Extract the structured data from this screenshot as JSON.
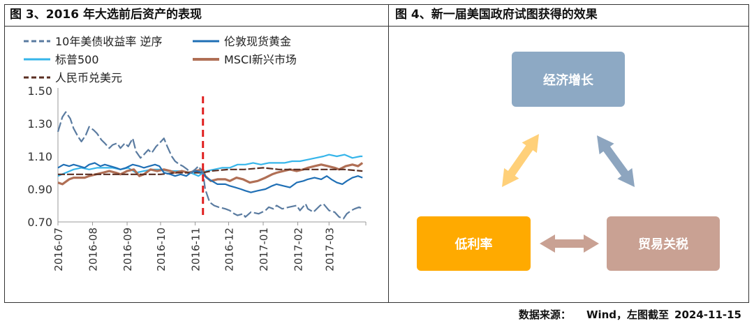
{
  "left_panel": {
    "title": "图 3、2016 年大选前后资产的表现"
  },
  "right_panel": {
    "title": "图 4、新一届美国政府试图获得的效果",
    "nodes": [
      {
        "label": "经济增长",
        "color": "#8DA9C4"
      },
      {
        "label": "低利率",
        "color": "#FFAA00"
      },
      {
        "label": "贸易关税",
        "color": "#C9A193"
      }
    ],
    "arrow_colors": {
      "left": "#FFD079",
      "right": "#8DA5BF",
      "bottom": "#C9A193"
    }
  },
  "footer": {
    "source_label": "数据来源：",
    "source": "Wind，左图截至",
    "date": "2024-11-15"
  },
  "chart_data": {
    "type": "line",
    "y_ticks": [
      "1.50",
      "1.30",
      "1.10",
      "0.90",
      "0.70"
    ],
    "ylim": [
      0.7,
      1.5
    ],
    "x_ticks": [
      "2016-07",
      "2016-08",
      "2016-09",
      "2016-10",
      "2016-11",
      "2016-12",
      "2017-01",
      "2017-02",
      "2017-03"
    ],
    "event_marker": {
      "date": "2016-11-08",
      "color": "#E02020"
    },
    "series": [
      {
        "name": "10年美债收益率 逆序",
        "color": "#5A7BA0",
        "dashed": true,
        "points": [
          [
            "2016-07-01",
            1.25
          ],
          [
            "2016-07-05",
            1.34
          ],
          [
            "2016-07-08",
            1.37
          ],
          [
            "2016-07-12",
            1.33
          ],
          [
            "2016-07-15",
            1.27
          ],
          [
            "2016-07-19",
            1.22
          ],
          [
            "2016-07-22",
            1.19
          ],
          [
            "2016-07-26",
            1.23
          ],
          [
            "2016-07-29",
            1.28
          ],
          [
            "2016-08-02",
            1.26
          ],
          [
            "2016-08-05",
            1.24
          ],
          [
            "2016-08-09",
            1.2
          ],
          [
            "2016-08-12",
            1.18
          ],
          [
            "2016-08-16",
            1.15
          ],
          [
            "2016-08-19",
            1.17
          ],
          [
            "2016-08-23",
            1.18
          ],
          [
            "2016-08-26",
            1.15
          ],
          [
            "2016-08-30",
            1.18
          ],
          [
            "2016-09-02",
            1.16
          ],
          [
            "2016-09-06",
            1.21
          ],
          [
            "2016-09-09",
            1.13
          ],
          [
            "2016-09-13",
            1.09
          ],
          [
            "2016-09-16",
            1.11
          ],
          [
            "2016-09-20",
            1.14
          ],
          [
            "2016-09-23",
            1.12
          ],
          [
            "2016-09-27",
            1.16
          ],
          [
            "2016-09-30",
            1.18
          ],
          [
            "2016-10-04",
            1.21
          ],
          [
            "2016-10-07",
            1.16
          ],
          [
            "2016-10-11",
            1.1
          ],
          [
            "2016-10-14",
            1.07
          ],
          [
            "2016-10-18",
            1.05
          ],
          [
            "2016-10-21",
            1.04
          ],
          [
            "2016-10-25",
            1.02
          ],
          [
            "2016-10-28",
            1.0
          ],
          [
            "2016-11-01",
            1.02
          ],
          [
            "2016-11-04",
            1.04
          ],
          [
            "2016-11-08",
            1.0
          ],
          [
            "2016-11-10",
            0.9
          ],
          [
            "2016-11-14",
            0.82
          ],
          [
            "2016-11-18",
            0.8
          ],
          [
            "2016-11-22",
            0.79
          ],
          [
            "2016-11-28",
            0.78
          ],
          [
            "2016-12-02",
            0.77
          ],
          [
            "2016-12-06",
            0.75
          ],
          [
            "2016-12-09",
            0.74
          ],
          [
            "2016-12-14",
            0.75
          ],
          [
            "2016-12-16",
            0.73
          ],
          [
            "2016-12-21",
            0.76
          ],
          [
            "2016-12-28",
            0.75
          ],
          [
            "2017-01-03",
            0.77
          ],
          [
            "2017-01-06",
            0.79
          ],
          [
            "2017-01-10",
            0.78
          ],
          [
            "2017-01-13",
            0.8
          ],
          [
            "2017-01-18",
            0.78
          ],
          [
            "2017-01-24",
            0.79
          ],
          [
            "2017-01-31",
            0.8
          ],
          [
            "2017-02-03",
            0.77
          ],
          [
            "2017-02-08",
            0.81
          ],
          [
            "2017-02-10",
            0.78
          ],
          [
            "2017-02-15",
            0.76
          ],
          [
            "2017-02-21",
            0.8
          ],
          [
            "2017-02-24",
            0.81
          ],
          [
            "2017-03-01",
            0.77
          ],
          [
            "2017-03-06",
            0.76
          ],
          [
            "2017-03-10",
            0.73
          ],
          [
            "2017-03-14",
            0.72
          ],
          [
            "2017-03-17",
            0.75
          ],
          [
            "2017-03-21",
            0.77
          ],
          [
            "2017-03-24",
            0.78
          ],
          [
            "2017-03-28",
            0.79
          ],
          [
            "2017-03-31",
            0.78
          ]
        ]
      },
      {
        "name": "伦敦现货黄金",
        "color": "#1F6FB5",
        "dashed": false,
        "points": [
          [
            "2016-07-01",
            1.03
          ],
          [
            "2016-07-06",
            1.05
          ],
          [
            "2016-07-11",
            1.04
          ],
          [
            "2016-07-15",
            1.05
          ],
          [
            "2016-07-20",
            1.04
          ],
          [
            "2016-07-25",
            1.03
          ],
          [
            "2016-07-29",
            1.05
          ],
          [
            "2016-08-03",
            1.06
          ],
          [
            "2016-08-08",
            1.04
          ],
          [
            "2016-08-12",
            1.05
          ],
          [
            "2016-08-17",
            1.04
          ],
          [
            "2016-08-22",
            1.03
          ],
          [
            "2016-08-26",
            1.02
          ],
          [
            "2016-08-31",
            1.03
          ],
          [
            "2016-09-06",
            1.05
          ],
          [
            "2016-09-12",
            1.04
          ],
          [
            "2016-09-16",
            1.03
          ],
          [
            "2016-09-21",
            1.04
          ],
          [
            "2016-09-26",
            1.05
          ],
          [
            "2016-09-30",
            1.04
          ],
          [
            "2016-10-04",
            1.0
          ],
          [
            "2016-10-10",
            0.99
          ],
          [
            "2016-10-14",
            0.98
          ],
          [
            "2016-10-19",
            0.99
          ],
          [
            "2016-10-24",
            0.98
          ],
          [
            "2016-10-28",
            1.0
          ],
          [
            "2016-11-02",
            1.01
          ],
          [
            "2016-11-08",
            1.0
          ],
          [
            "2016-11-11",
            0.97
          ],
          [
            "2016-11-16",
            0.95
          ],
          [
            "2016-11-21",
            0.93
          ],
          [
            "2016-11-28",
            0.93
          ],
          [
            "2016-12-02",
            0.92
          ],
          [
            "2016-12-07",
            0.91
          ],
          [
            "2016-12-12",
            0.9
          ],
          [
            "2016-12-16",
            0.89
          ],
          [
            "2016-12-21",
            0.88
          ],
          [
            "2016-12-27",
            0.89
          ],
          [
            "2017-01-03",
            0.9
          ],
          [
            "2017-01-09",
            0.92
          ],
          [
            "2017-01-13",
            0.93
          ],
          [
            "2017-01-19",
            0.92
          ],
          [
            "2017-01-25",
            0.91
          ],
          [
            "2017-01-31",
            0.94
          ],
          [
            "2017-02-06",
            0.95
          ],
          [
            "2017-02-10",
            0.96
          ],
          [
            "2017-02-16",
            0.97
          ],
          [
            "2017-02-22",
            0.96
          ],
          [
            "2017-02-27",
            0.98
          ],
          [
            "2017-03-03",
            0.96
          ],
          [
            "2017-03-08",
            0.94
          ],
          [
            "2017-03-13",
            0.93
          ],
          [
            "2017-03-17",
            0.95
          ],
          [
            "2017-03-22",
            0.97
          ],
          [
            "2017-03-27",
            0.98
          ],
          [
            "2017-03-31",
            0.97
          ]
        ]
      },
      {
        "name": "标普500",
        "color": "#36B5EA",
        "dashed": false,
        "points": [
          [
            "2016-07-01",
            0.98
          ],
          [
            "2016-07-08",
            1.0
          ],
          [
            "2016-07-15",
            1.02
          ],
          [
            "2016-07-22",
            1.03
          ],
          [
            "2016-07-29",
            1.02
          ],
          [
            "2016-08-05",
            1.03
          ],
          [
            "2016-08-12",
            1.03
          ],
          [
            "2016-08-19",
            1.03
          ],
          [
            "2016-08-26",
            1.02
          ],
          [
            "2016-09-02",
            1.03
          ],
          [
            "2016-09-09",
            1.0
          ],
          [
            "2016-09-16",
            1.01
          ],
          [
            "2016-09-23",
            1.02
          ],
          [
            "2016-09-30",
            1.02
          ],
          [
            "2016-10-07",
            1.01
          ],
          [
            "2016-10-14",
            1.01
          ],
          [
            "2016-10-21",
            1.01
          ],
          [
            "2016-10-28",
            1.0
          ],
          [
            "2016-11-04",
            0.98
          ],
          [
            "2016-11-08",
            1.0
          ],
          [
            "2016-11-11",
            1.01
          ],
          [
            "2016-11-18",
            1.02
          ],
          [
            "2016-11-25",
            1.03
          ],
          [
            "2016-12-02",
            1.03
          ],
          [
            "2016-12-09",
            1.05
          ],
          [
            "2016-12-16",
            1.05
          ],
          [
            "2016-12-23",
            1.06
          ],
          [
            "2016-12-30",
            1.05
          ],
          [
            "2017-01-06",
            1.06
          ],
          [
            "2017-01-13",
            1.06
          ],
          [
            "2017-01-20",
            1.06
          ],
          [
            "2017-01-27",
            1.07
          ],
          [
            "2017-02-03",
            1.07
          ],
          [
            "2017-02-10",
            1.08
          ],
          [
            "2017-02-17",
            1.09
          ],
          [
            "2017-02-24",
            1.1
          ],
          [
            "2017-03-01",
            1.11
          ],
          [
            "2017-03-08",
            1.1
          ],
          [
            "2017-03-15",
            1.11
          ],
          [
            "2017-03-22",
            1.09
          ],
          [
            "2017-03-29",
            1.1
          ],
          [
            "2017-03-31",
            1.1
          ]
        ]
      },
      {
        "name": "MSCI新兴市场",
        "color": "#B06F55",
        "dashed": false,
        "points": [
          [
            "2016-07-01",
            0.94
          ],
          [
            "2016-07-05",
            0.93
          ],
          [
            "2016-07-11",
            0.96
          ],
          [
            "2016-07-15",
            0.97
          ],
          [
            "2016-07-20",
            0.97
          ],
          [
            "2016-07-25",
            0.97
          ],
          [
            "2016-07-29",
            0.98
          ],
          [
            "2016-08-04",
            0.99
          ],
          [
            "2016-08-10",
            1.0
          ],
          [
            "2016-08-16",
            1.01
          ],
          [
            "2016-08-22",
            1.0
          ],
          [
            "2016-08-26",
            0.99
          ],
          [
            "2016-09-01",
            1.01
          ],
          [
            "2016-09-07",
            1.02
          ],
          [
            "2016-09-12",
            0.98
          ],
          [
            "2016-09-16",
            0.99
          ],
          [
            "2016-09-22",
            1.02
          ],
          [
            "2016-09-28",
            1.01
          ],
          [
            "2016-10-04",
            1.02
          ],
          [
            "2016-10-10",
            1.01
          ],
          [
            "2016-10-14",
            1.0
          ],
          [
            "2016-10-20",
            1.01
          ],
          [
            "2016-10-26",
            1.0
          ],
          [
            "2016-11-01",
            1.01
          ],
          [
            "2016-11-08",
            1.02
          ],
          [
            "2016-11-10",
            0.98
          ],
          [
            "2016-11-15",
            0.95
          ],
          [
            "2016-11-21",
            0.96
          ],
          [
            "2016-11-28",
            0.96
          ],
          [
            "2016-12-02",
            0.95
          ],
          [
            "2016-12-08",
            0.97
          ],
          [
            "2016-12-14",
            0.96
          ],
          [
            "2016-12-20",
            0.94
          ],
          [
            "2016-12-27",
            0.95
          ],
          [
            "2017-01-03",
            0.97
          ],
          [
            "2017-01-09",
            0.99
          ],
          [
            "2017-01-13",
            1.0
          ],
          [
            "2017-01-19",
            1.01
          ],
          [
            "2017-01-25",
            1.02
          ],
          [
            "2017-01-31",
            1.01
          ],
          [
            "2017-02-06",
            1.02
          ],
          [
            "2017-02-10",
            1.03
          ],
          [
            "2017-02-16",
            1.04
          ],
          [
            "2017-02-22",
            1.05
          ],
          [
            "2017-02-28",
            1.04
          ],
          [
            "2017-03-06",
            1.03
          ],
          [
            "2017-03-10",
            1.02
          ],
          [
            "2017-03-16",
            1.04
          ],
          [
            "2017-03-22",
            1.05
          ],
          [
            "2017-03-27",
            1.04
          ],
          [
            "2017-03-31",
            1.06
          ]
        ]
      },
      {
        "name": "人民币兑美元",
        "color": "#5A2E22",
        "dashed": true,
        "points": [
          [
            "2016-07-01",
            0.99
          ],
          [
            "2016-07-15",
            0.99
          ],
          [
            "2016-08-01",
            0.99
          ],
          [
            "2016-08-15",
            0.99
          ],
          [
            "2016-09-01",
            0.99
          ],
          [
            "2016-09-15",
            0.99
          ],
          [
            "2016-10-01",
            0.99
          ],
          [
            "2016-10-15",
            1.0
          ],
          [
            "2016-11-01",
            1.0
          ],
          [
            "2016-11-08",
            1.0
          ],
          [
            "2016-11-15",
            1.01
          ],
          [
            "2016-12-01",
            1.02
          ],
          [
            "2016-12-15",
            1.02
          ],
          [
            "2017-01-01",
            1.03
          ],
          [
            "2017-01-15",
            1.02
          ],
          [
            "2017-02-01",
            1.02
          ],
          [
            "2017-02-15",
            1.02
          ],
          [
            "2017-03-01",
            1.02
          ],
          [
            "2017-03-15",
            1.02
          ],
          [
            "2017-03-31",
            1.01
          ]
        ]
      }
    ]
  }
}
